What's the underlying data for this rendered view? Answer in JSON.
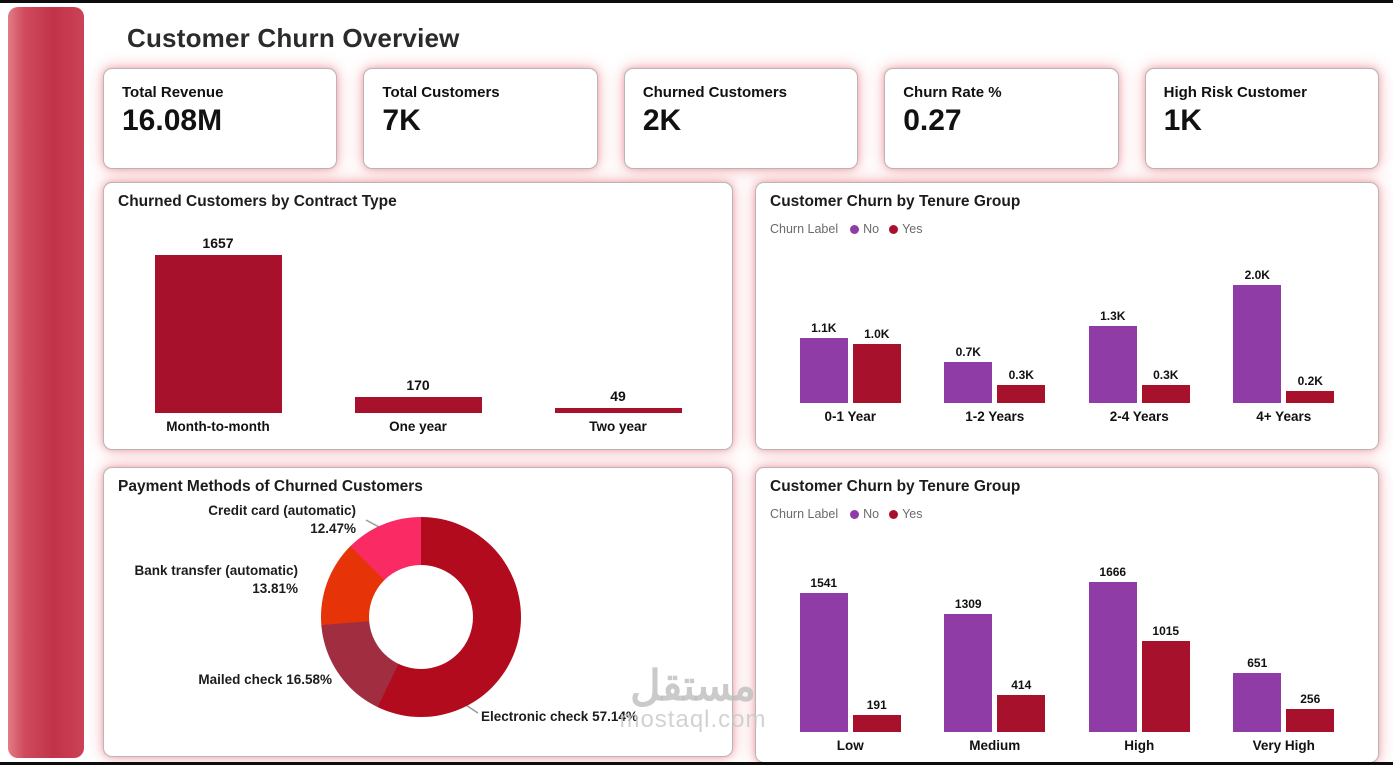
{
  "page": {
    "title": "Customer Churn Overview"
  },
  "kpis": [
    {
      "label": "Total Revenue",
      "value": "16.08M"
    },
    {
      "label": "Total Customers",
      "value": "7K"
    },
    {
      "label": "Churned Customers",
      "value": "2K"
    },
    {
      "label": "Churn Rate %",
      "value": "0.27"
    },
    {
      "label": "High Risk Customer",
      "value": "1K"
    }
  ],
  "chart_data": [
    {
      "type": "bar",
      "title": "Churned Customers by Contract Type",
      "categories": [
        "Month-to-month",
        "One year",
        "Two year"
      ],
      "values": [
        1657,
        170,
        49
      ],
      "data_labels": [
        "1657",
        "170",
        "49"
      ],
      "bar_color": "#a8112b",
      "xlabel": "",
      "ylabel": "",
      "grid": false,
      "legend": false
    },
    {
      "type": "bar",
      "title": "Customer Churn by Tenure Group",
      "legend_title": "Churn Label",
      "legend_position": "top-left",
      "categories": [
        "0-1 Year",
        "1-2 Years",
        "2-4 Years",
        "4+ Years"
      ],
      "series": [
        {
          "name": "No",
          "color": "#8f3ca6",
          "values": [
            1100,
            700,
            1300,
            2000
          ],
          "labels": [
            "1.1K",
            "0.7K",
            "1.3K",
            "2.0K"
          ]
        },
        {
          "name": "Yes",
          "color": "#a8112b",
          "values": [
            1000,
            300,
            300,
            200
          ],
          "labels": [
            "1.0K",
            "0.3K",
            "0.3K",
            "0.2K"
          ]
        }
      ],
      "grid": false
    },
    {
      "type": "pie",
      "title": "Payment Methods of Churned Customers",
      "slices": [
        {
          "name": "Electronic check",
          "pct": 57.14,
          "pct_label": "57.14%",
          "color": "#b20b1e"
        },
        {
          "name": "Mailed check",
          "pct": 16.58,
          "pct_label": "16.58%",
          "color": "#a02e40"
        },
        {
          "name": "Bank transfer (automatic)",
          "pct": 13.81,
          "pct_label": "13.81%",
          "color": "#e63307"
        },
        {
          "name": "Credit card (automatic)",
          "pct": 12.47,
          "pct_label": "12.47%",
          "color": "#fa2a64"
        }
      ],
      "donut": true
    },
    {
      "type": "bar",
      "title": "Customer Churn by Tenure Group",
      "legend_title": "Churn Label",
      "legend_position": "top-left",
      "categories": [
        "Low",
        "Medium",
        "High",
        "Very High"
      ],
      "series": [
        {
          "name": "No",
          "color": "#8f3ca6",
          "values": [
            1541,
            1309,
            1666,
            651
          ],
          "labels": [
            "1541",
            "1309",
            "1666",
            "651"
          ]
        },
        {
          "name": "Yes",
          "color": "#a8112b",
          "values": [
            191,
            414,
            1015,
            256
          ],
          "labels": [
            "191",
            "414",
            "1015",
            "256"
          ]
        }
      ],
      "grid": false
    }
  ],
  "watermark": {
    "arabic": "مستقل",
    "domain": "mostaql.com"
  }
}
